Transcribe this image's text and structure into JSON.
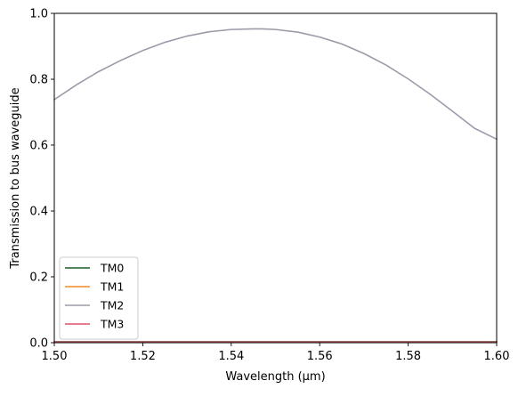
{
  "chart_data": {
    "type": "line",
    "title": "",
    "xlabel": "Wavelength (μm)",
    "ylabel": "Transmission to bus waveguide",
    "xlim": [
      1.5,
      1.6
    ],
    "ylim": [
      0.0,
      1.0
    ],
    "x_ticks": [
      1.5,
      1.52,
      1.54,
      1.56,
      1.58,
      1.6
    ],
    "x_tick_labels": [
      "1.50",
      "1.52",
      "1.54",
      "1.56",
      "1.58",
      "1.60"
    ],
    "y_ticks": [
      0.0,
      0.2,
      0.4,
      0.6,
      0.8,
      1.0
    ],
    "y_tick_labels": [
      "0.0",
      "0.2",
      "0.4",
      "0.6",
      "0.8",
      "1.0"
    ],
    "grid": false,
    "legend_position": "lower-left",
    "series": [
      {
        "name": "TM0",
        "color": "#1a5e1f",
        "x": [
          1.5,
          1.51,
          1.52,
          1.53,
          1.54,
          1.55,
          1.56,
          1.57,
          1.58,
          1.59,
          1.6
        ],
        "y": [
          0.003,
          0.003,
          0.003,
          0.003,
          0.003,
          0.003,
          0.003,
          0.003,
          0.003,
          0.003,
          0.003
        ]
      },
      {
        "name": "TM1",
        "color": "#f08a24",
        "x": [
          1.5,
          1.51,
          1.52,
          1.53,
          1.54,
          1.55,
          1.56,
          1.57,
          1.58,
          1.59,
          1.6
        ],
        "y": [
          0.002,
          0.002,
          0.002,
          0.002,
          0.002,
          0.002,
          0.002,
          0.002,
          0.002,
          0.002,
          0.002
        ]
      },
      {
        "name": "TM2",
        "color": "#9d9aaa",
        "x": [
          1.5,
          1.505,
          1.51,
          1.515,
          1.52,
          1.525,
          1.53,
          1.535,
          1.54,
          1.545,
          1.547,
          1.55,
          1.555,
          1.56,
          1.565,
          1.57,
          1.575,
          1.58,
          1.585,
          1.59,
          1.595,
          1.6
        ],
        "y": [
          0.738,
          0.783,
          0.823,
          0.857,
          0.887,
          0.912,
          0.931,
          0.944,
          0.951,
          0.953,
          0.953,
          0.951,
          0.943,
          0.928,
          0.907,
          0.878,
          0.843,
          0.801,
          0.754,
          0.703,
          0.651,
          0.618
        ]
      },
      {
        "name": "TM3",
        "color": "#e0506a",
        "x": [
          1.5,
          1.51,
          1.52,
          1.53,
          1.54,
          1.55,
          1.56,
          1.57,
          1.58,
          1.59,
          1.6
        ],
        "y": [
          0.002,
          0.002,
          0.002,
          0.002,
          0.002,
          0.002,
          0.002,
          0.002,
          0.002,
          0.002,
          0.002
        ]
      }
    ]
  }
}
